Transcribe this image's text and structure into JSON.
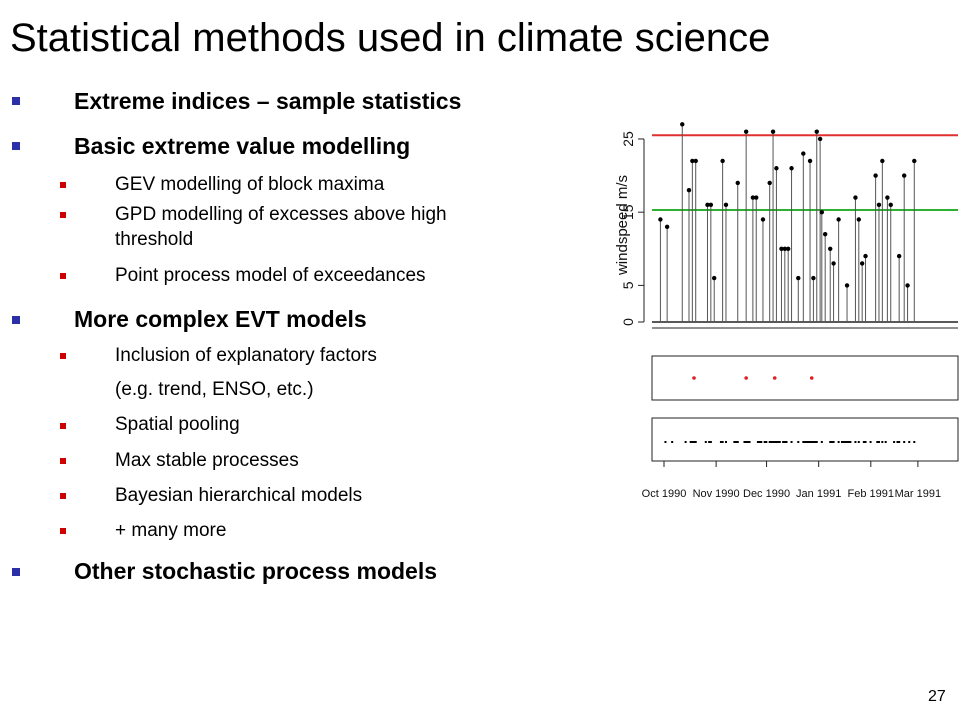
{
  "slide": {
    "title": "Statistical methods used in climate science",
    "page_number": "27",
    "bullets": [
      {
        "level": 1,
        "text": "Extreme indices – sample statistics"
      },
      {
        "level": 1,
        "text": "Basic extreme value modelling"
      },
      {
        "level": 2,
        "text": "GEV modelling of block maxima"
      },
      {
        "level": 2,
        "text": "GPD modelling of excesses above high"
      },
      {
        "level": 2,
        "text": "threshold",
        "continuation": true
      },
      {
        "level": 2,
        "text": "Point process model of exceedances"
      },
      {
        "level": 1,
        "text": "More complex EVT models"
      },
      {
        "level": 2,
        "text": "Inclusion of explanatory factors"
      },
      {
        "level": 2,
        "text": "(e.g. trend, ENSO, etc.)",
        "continuation": true
      },
      {
        "level": 2,
        "text": "Spatial pooling"
      },
      {
        "level": 2,
        "text": "Max stable processes"
      },
      {
        "level": 2,
        "text": "Bayesian hierarchical models"
      },
      {
        "level": 2,
        "text": "+ many more"
      },
      {
        "level": 1,
        "text": "Other stochastic process models"
      }
    ]
  },
  "chart_data": {
    "type": "scatter",
    "ylabel": "windspeed m/s",
    "yticks": [
      0,
      5,
      15,
      25
    ],
    "ylim": [
      0,
      28
    ],
    "thresholds": [
      {
        "value": 25.5,
        "color": "#e03030"
      },
      {
        "value": 15.3,
        "color": "#30b030"
      }
    ],
    "xtick_labels": [
      "Oct 1990",
      "Nov 1990",
      "Dec 1990",
      "Jan 1991",
      "Feb 1991",
      "Mar 1991"
    ],
    "xlim": [
      0,
      182
    ],
    "month_starts": [
      0,
      31,
      61,
      92,
      123,
      151
    ],
    "observations": {
      "day": [
        5,
        9,
        18,
        22,
        24,
        26,
        33,
        35,
        37,
        42,
        44,
        51,
        56,
        60,
        62,
        66,
        70,
        72,
        74,
        77,
        79,
        81,
        83,
        87,
        90,
        94,
        96,
        98,
        100,
        101,
        103,
        106,
        108,
        111,
        116,
        121,
        123,
        125,
        127,
        133,
        135,
        137,
        140,
        142,
        147,
        150,
        152,
        156
      ],
      "value": [
        14,
        13,
        27,
        18,
        22,
        22,
        16,
        16,
        6,
        22,
        16,
        19,
        26,
        17,
        17,
        14,
        19,
        26,
        21,
        10,
        10,
        10,
        21,
        6,
        23,
        22,
        6,
        26,
        25,
        15,
        12,
        10,
        8,
        14,
        5,
        17,
        14,
        8,
        9,
        20,
        16,
        22,
        17,
        16,
        9,
        20,
        5,
        22
      ]
    },
    "exceedance_days": [
      25,
      56,
      73,
      95
    ],
    "all_event_days": [
      8,
      12,
      20,
      23,
      24,
      25,
      26,
      32,
      34,
      35,
      41,
      42,
      44,
      49,
      50,
      51,
      55,
      56,
      57,
      58,
      63,
      64,
      65,
      67,
      68,
      70,
      71,
      72,
      73,
      74,
      75,
      76,
      78,
      79,
      80,
      83,
      87,
      90,
      91,
      92,
      93,
      94,
      95,
      96,
      97,
      98,
      101,
      106,
      107,
      108,
      111,
      113,
      114,
      115,
      116,
      117,
      118,
      121,
      123,
      126,
      127,
      130,
      134,
      135,
      137,
      139,
      144,
      146,
      147,
      150,
      153,
      156
    ],
    "colors": {
      "marker": "#000000",
      "exceedance": "#e02020",
      "axis": "#222222"
    }
  },
  "theme": {
    "bullet_l1": "#2b2fa8",
    "bullet_l2": "#cc0000"
  }
}
